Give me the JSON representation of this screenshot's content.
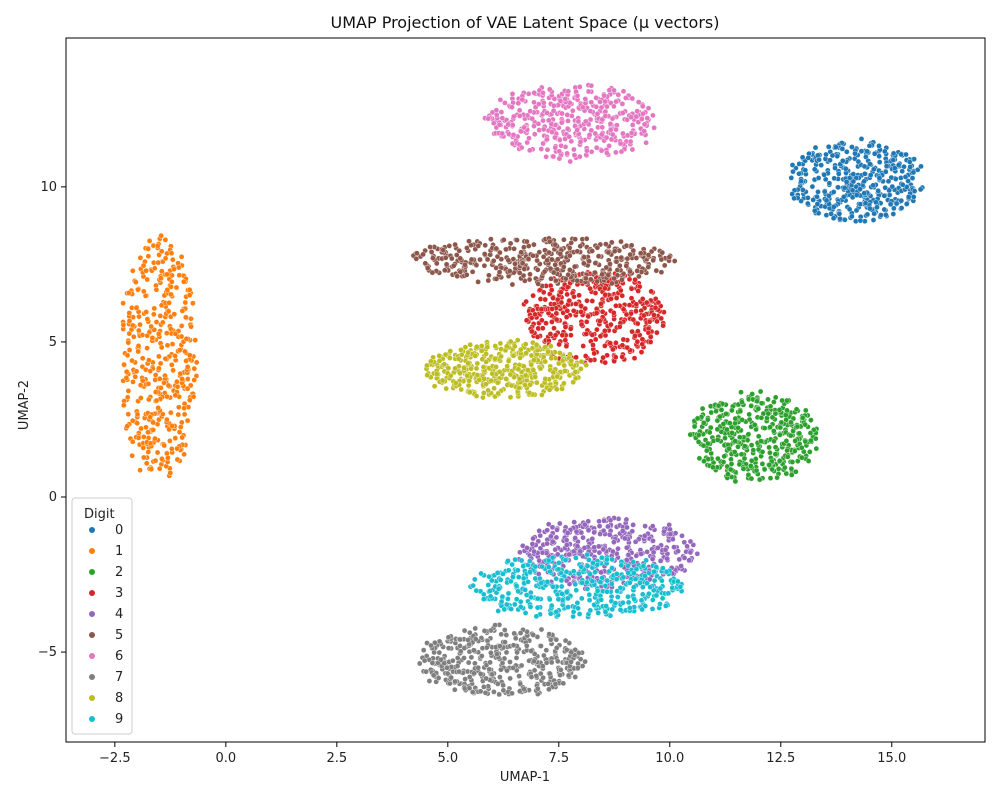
{
  "chart_data": {
    "type": "scatter",
    "title": "UMAP Projection of VAE Latent Space (μ vectors)",
    "xlabel": "UMAP-1",
    "ylabel": "UMAP-2",
    "xlim": [
      -3.6,
      17.1
    ],
    "ylim": [
      -7.9,
      14.8
    ],
    "xticks": [
      -2.5,
      0.0,
      2.5,
      5.0,
      7.5,
      10.0,
      12.5,
      15.0
    ],
    "xtick_labels": [
      "−2.5",
      "0.0",
      "2.5",
      "5.0",
      "7.5",
      "10.0",
      "12.5",
      "15.0"
    ],
    "yticks": [
      -5,
      0,
      5,
      10
    ],
    "ytick_labels": [
      "−5",
      "0",
      "5",
      "10"
    ],
    "grid": false,
    "legend": {
      "title": "Digit",
      "placement": "lower-left"
    },
    "series": [
      {
        "name": "0",
        "color": "#1f77b4",
        "cluster": {
          "cx": 14.2,
          "cy": 10.2,
          "rx": 1.5,
          "ry": 1.3
        }
      },
      {
        "name": "1",
        "color": "#ff7f0e",
        "cluster": {
          "cx": -1.5,
          "cy": 4.4,
          "rx": 0.85,
          "ry": 4.0
        }
      },
      {
        "name": "2",
        "color": "#2ca02c",
        "cluster": {
          "cx": 11.9,
          "cy": 1.9,
          "rx": 1.45,
          "ry": 1.4
        }
      },
      {
        "name": "3",
        "color": "#d62728",
        "cluster": {
          "cx": 8.3,
          "cy": 5.8,
          "rx": 1.6,
          "ry": 1.5
        }
      },
      {
        "name": "4",
        "color": "#9467bd",
        "cluster": {
          "cx": 8.6,
          "cy": -1.8,
          "rx": 2.0,
          "ry": 1.1
        }
      },
      {
        "name": "5",
        "color": "#8c564b",
        "cluster": {
          "cx": 7.1,
          "cy": 7.6,
          "rx": 3.0,
          "ry": 0.75
        }
      },
      {
        "name": "6",
        "color": "#e377c2",
        "cluster": {
          "cx": 7.8,
          "cy": 12.1,
          "rx": 1.9,
          "ry": 1.2
        }
      },
      {
        "name": "7",
        "color": "#7f7f7f",
        "cluster": {
          "cx": 6.2,
          "cy": -5.3,
          "rx": 1.9,
          "ry": 1.1
        }
      },
      {
        "name": "8",
        "color": "#bcbd22",
        "cluster": {
          "cx": 6.3,
          "cy": 4.1,
          "rx": 1.8,
          "ry": 0.9
        }
      },
      {
        "name": "9",
        "color": "#17becf",
        "cluster": {
          "cx": 7.9,
          "cy": -2.9,
          "rx": 2.4,
          "ry": 1.0
        }
      }
    ]
  }
}
